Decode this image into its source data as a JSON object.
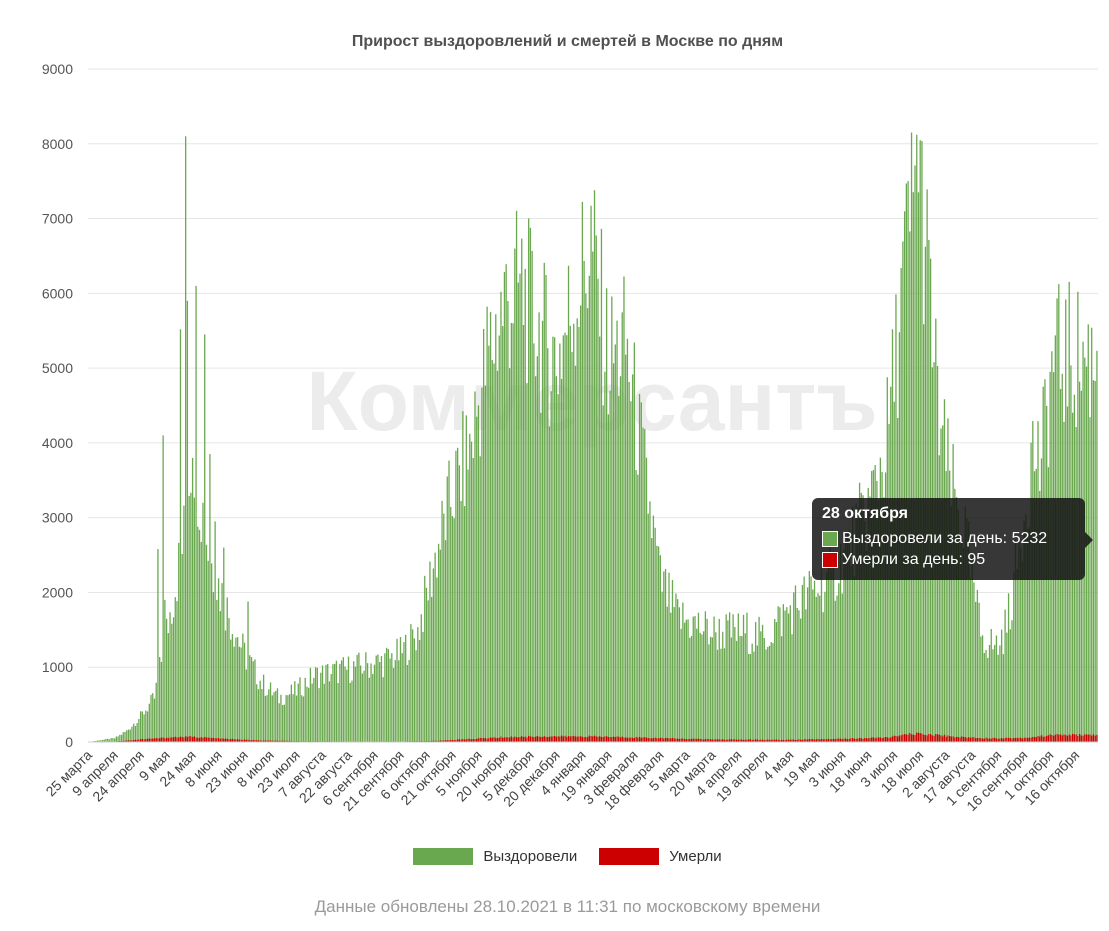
{
  "chart_data": {
    "type": "bar",
    "title": "Прирост выздоровлений и смертей в Москве по дням",
    "y_ticks": [
      "0",
      "1000",
      "2000",
      "3000",
      "4000",
      "5000",
      "6000",
      "7000",
      "8000",
      "9000"
    ],
    "ylim": [
      0,
      9000
    ],
    "x_tick_labels": [
      "25 марта",
      "9 апреля",
      "24 апреля",
      "9 мая",
      "24 мая",
      "8 июня",
      "23 июня",
      "8 июля",
      "23 июля",
      "7 августа",
      "22 августа",
      "6 сентября",
      "21 сентября",
      "6 октября",
      "21 октября",
      "5 ноября",
      "20 ноября",
      "5 декабря",
      "20 декабря",
      "4 января",
      "19 января",
      "3 февраля",
      "18 февраля",
      "5 марта",
      "20 марта",
      "4 апреля",
      "19 апреля",
      "4 мая",
      "19 мая",
      "3 июня",
      "18 июня",
      "3 июля",
      "18 июля",
      "2 августа",
      "17 августа",
      "1 сентября",
      "16 сентября",
      "1 октября",
      "16 октября"
    ],
    "date_range": [
      "2020-03-25",
      "2021-10-28"
    ],
    "recovered_profile": [
      [
        0,
        0
      ],
      [
        8,
        30
      ],
      [
        15,
        50
      ],
      [
        22,
        150
      ],
      [
        30,
        350
      ],
      [
        38,
        600
      ],
      [
        45,
        1500
      ],
      [
        55,
        2800
      ],
      [
        60,
        4200
      ],
      [
        65,
        3300
      ],
      [
        70,
        2500
      ],
      [
        80,
        1800
      ],
      [
        90,
        1200
      ],
      [
        100,
        800
      ],
      [
        110,
        600
      ],
      [
        120,
        700
      ],
      [
        130,
        900
      ],
      [
        140,
        950
      ],
      [
        150,
        1000
      ],
      [
        160,
        1050
      ],
      [
        170,
        1100
      ],
      [
        180,
        1200
      ],
      [
        190,
        1500
      ],
      [
        200,
        2500
      ],
      [
        210,
        3400
      ],
      [
        220,
        4000
      ],
      [
        230,
        5200
      ],
      [
        240,
        6000
      ],
      [
        250,
        6200
      ],
      [
        260,
        5600
      ],
      [
        270,
        5200
      ],
      [
        280,
        6000
      ],
      [
        290,
        6800
      ],
      [
        300,
        5200
      ],
      [
        310,
        5400
      ],
      [
        320,
        3800
      ],
      [
        330,
        2200
      ],
      [
        340,
        1700
      ],
      [
        360,
        1500
      ],
      [
        380,
        1500
      ],
      [
        390,
        1400
      ],
      [
        400,
        1700
      ],
      [
        410,
        1900
      ],
      [
        420,
        2100
      ],
      [
        430,
        2300
      ],
      [
        440,
        2700
      ],
      [
        450,
        3200
      ],
      [
        460,
        4000
      ],
      [
        465,
        5000
      ],
      [
        470,
        6300
      ],
      [
        475,
        7200
      ],
      [
        480,
        7600
      ],
      [
        485,
        6200
      ],
      [
        490,
        4600
      ],
      [
        495,
        3800
      ],
      [
        500,
        3300
      ],
      [
        505,
        3000
      ],
      [
        510,
        2200
      ],
      [
        515,
        1500
      ],
      [
        520,
        1350
      ],
      [
        525,
        1300
      ],
      [
        530,
        1600
      ],
      [
        535,
        2300
      ],
      [
        540,
        3200
      ],
      [
        545,
        4000
      ],
      [
        550,
        3800
      ],
      [
        553,
        4500
      ],
      [
        557,
        5232
      ]
    ],
    "recovered_spikes": [
      [
        40,
        2580
      ],
      [
        43,
        4100
      ],
      [
        44,
        1900
      ],
      [
        53,
        5520
      ],
      [
        56,
        8100
      ],
      [
        57,
        5900
      ],
      [
        60,
        3800
      ],
      [
        62,
        6100
      ],
      [
        67,
        5450
      ],
      [
        70,
        3850
      ],
      [
        73,
        2950
      ],
      [
        78,
        2600
      ],
      [
        92,
        1880
      ],
      [
        475,
        8150
      ],
      [
        478,
        8120
      ]
    ],
    "deaths_profile": [
      [
        0,
        0
      ],
      [
        10,
        2
      ],
      [
        20,
        15
      ],
      [
        30,
        35
      ],
      [
        40,
        50
      ],
      [
        50,
        65
      ],
      [
        60,
        70
      ],
      [
        70,
        55
      ],
      [
        80,
        40
      ],
      [
        90,
        30
      ],
      [
        100,
        20
      ],
      [
        120,
        12
      ],
      [
        150,
        8
      ],
      [
        180,
        8
      ],
      [
        200,
        15
      ],
      [
        220,
        40
      ],
      [
        240,
        65
      ],
      [
        260,
        75
      ],
      [
        290,
        75
      ],
      [
        300,
        70
      ],
      [
        320,
        60
      ],
      [
        340,
        45
      ],
      [
        360,
        35
      ],
      [
        400,
        28
      ],
      [
        440,
        45
      ],
      [
        460,
        60
      ],
      [
        470,
        90
      ],
      [
        475,
        110
      ],
      [
        480,
        108
      ],
      [
        490,
        95
      ],
      [
        500,
        70
      ],
      [
        520,
        50
      ],
      [
        540,
        55
      ],
      [
        557,
        95
      ]
    ],
    "series": [
      {
        "name": "Выздоровели",
        "color": "#6aa84f"
      },
      {
        "name": "Умерли",
        "color": "#cc0000"
      }
    ],
    "tooltip": {
      "title": "28 октября",
      "rows": [
        {
          "label": "Выздоровели за день",
          "value": 5232,
          "color": "#6aa84f"
        },
        {
          "label": "Умерли за день",
          "value": 95,
          "color": "#cc0000"
        }
      ]
    },
    "grid": true,
    "legend": "bottom-center"
  },
  "legend": {
    "recovered": "Выздоровели",
    "deaths": "Умерли"
  },
  "tooltip_text": {
    "title": "28 октября",
    "recovered": "Выздоровели за день: 5232",
    "deaths": "Умерли за день: 95"
  },
  "footer": "Данные обновлены 28.10.2021 в 11:31 по московскому времени",
  "watermark": "Коммерсантъ"
}
